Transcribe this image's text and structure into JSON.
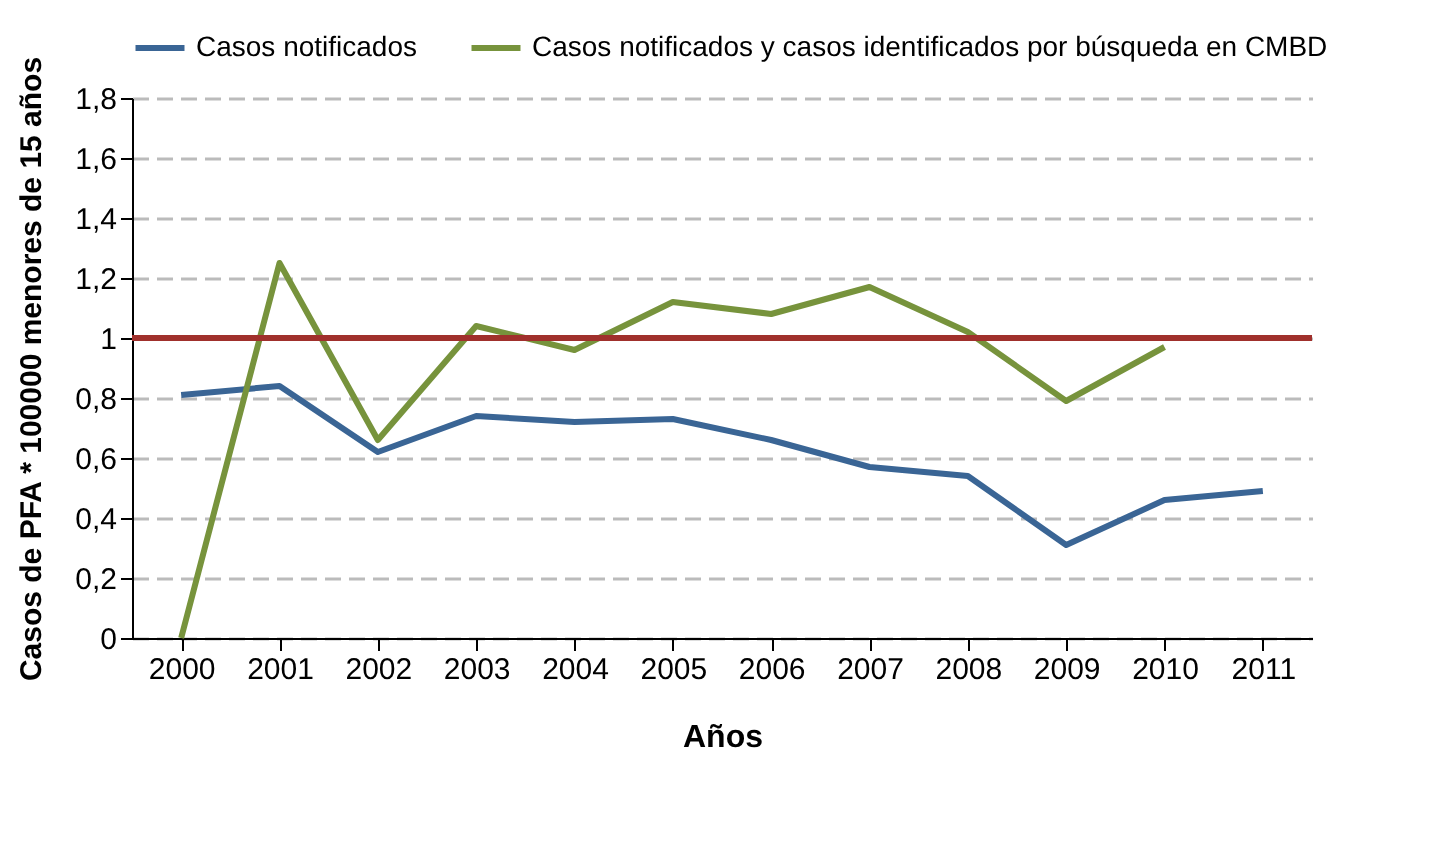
{
  "chart_data": {
    "type": "line",
    "xlabel": "Años",
    "ylabel": "Casos de PFA * 100000 menores de 15 años",
    "categories": [
      "2000",
      "2001",
      "2002",
      "2003",
      "2004",
      "2005",
      "2006",
      "2007",
      "2008",
      "2009",
      "2010",
      "2011"
    ],
    "series": [
      {
        "name": "Casos notificados",
        "color": "#3a6595",
        "values": [
          0.81,
          0.84,
          0.62,
          0.74,
          0.72,
          0.73,
          0.66,
          0.57,
          0.54,
          0.31,
          0.46,
          0.49
        ]
      },
      {
        "name": "Casos notificados y casos identificados por búsqueda en CMBD",
        "color": "#77933c",
        "values": [
          0,
          1.25,
          0.66,
          1.04,
          0.96,
          1.12,
          1.08,
          1.17,
          1.02,
          0.79,
          0.97,
          null
        ]
      }
    ],
    "ylim": [
      0,
      1.8
    ],
    "yticks": [
      {
        "value": 0,
        "label": "0"
      },
      {
        "value": 0.2,
        "label": "0,2"
      },
      {
        "value": 0.4,
        "label": "0,4"
      },
      {
        "value": 0.6,
        "label": "0,6"
      },
      {
        "value": 0.8,
        "label": "0,8"
      },
      {
        "value": 1,
        "label": "1"
      },
      {
        "value": 1.2,
        "label": "1,2"
      },
      {
        "value": 1.4,
        "label": "1,4"
      },
      {
        "value": 1.6,
        "label": "1,6"
      },
      {
        "value": 1.8,
        "label": "1,8"
      }
    ],
    "grid": "y",
    "legend": "top",
    "line_style": "solid",
    "marker": "none",
    "ref_lines": [
      {
        "axis": "y",
        "value": 1,
        "color": "#a0302c"
      }
    ]
  }
}
